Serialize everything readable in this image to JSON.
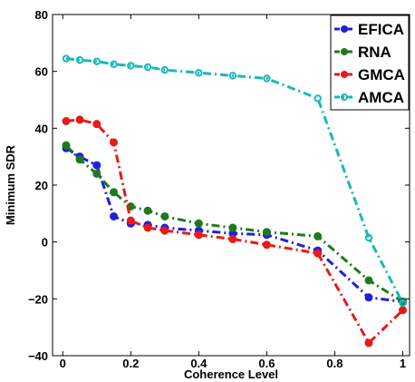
{
  "chart_data": {
    "type": "line",
    "title": "",
    "xlabel": "Coherence Level",
    "ylabel": "Minimum SDR",
    "xlim": [
      -0.03,
      1.02
    ],
    "ylim": [
      -40,
      80
    ],
    "x_ticks": [
      0,
      0.2,
      0.4,
      0.6,
      0.8,
      1
    ],
    "x_tick_labels": [
      "0",
      "0.2",
      "0.4",
      "0.6",
      "0.8",
      "1"
    ],
    "y_ticks": [
      -40,
      -20,
      0,
      20,
      40,
      60,
      80
    ],
    "y_tick_labels": [
      "−40",
      "−20",
      "0",
      "20",
      "40",
      "60",
      "80"
    ],
    "grid": false,
    "legend_position": "top-right",
    "series": [
      {
        "name": "EFICA",
        "color": "#1f1fe0",
        "points": [
          [
            0.01,
            33
          ],
          [
            0.05,
            30
          ],
          [
            0.1,
            27
          ],
          [
            0.15,
            9
          ],
          [
            0.2,
            6.5
          ],
          [
            0.25,
            6
          ],
          [
            0.3,
            5
          ],
          [
            0.4,
            4
          ],
          [
            0.5,
            3
          ],
          [
            0.6,
            2.5
          ],
          [
            0.75,
            -3
          ],
          [
            0.9,
            -19.5
          ],
          [
            1.0,
            -21
          ]
        ]
      },
      {
        "name": "RNA",
        "color": "#1e7a1e",
        "points": [
          [
            0.01,
            34
          ],
          [
            0.05,
            29
          ],
          [
            0.1,
            24
          ],
          [
            0.15,
            17.5
          ],
          [
            0.2,
            12.5
          ],
          [
            0.25,
            11
          ],
          [
            0.3,
            9
          ],
          [
            0.4,
            6.5
          ],
          [
            0.5,
            5
          ],
          [
            0.6,
            3.5
          ],
          [
            0.75,
            2
          ],
          [
            0.9,
            -13.5
          ],
          [
            1.0,
            -21
          ]
        ]
      },
      {
        "name": "GMCA",
        "color": "#e81a1a",
        "points": [
          [
            0.01,
            42.5
          ],
          [
            0.05,
            43
          ],
          [
            0.1,
            41.5
          ],
          [
            0.15,
            35
          ],
          [
            0.2,
            7.5
          ],
          [
            0.25,
            5
          ],
          [
            0.3,
            4
          ],
          [
            0.4,
            2.5
          ],
          [
            0.5,
            1
          ],
          [
            0.6,
            -1
          ],
          [
            0.75,
            -4
          ],
          [
            0.9,
            -35.5
          ],
          [
            1.0,
            -24
          ]
        ]
      },
      {
        "name": "AMCA",
        "color": "#1ab8b8",
        "points": [
          [
            0.01,
            64.5
          ],
          [
            0.05,
            64
          ],
          [
            0.1,
            63.5
          ],
          [
            0.15,
            62.5
          ],
          [
            0.2,
            62
          ],
          [
            0.25,
            61.5
          ],
          [
            0.3,
            60.5
          ],
          [
            0.4,
            59.5
          ],
          [
            0.5,
            58.5
          ],
          [
            0.6,
            57.5
          ],
          [
            0.75,
            50.5
          ],
          [
            0.9,
            1.5
          ],
          [
            1.0,
            -21.5
          ]
        ]
      }
    ]
  }
}
